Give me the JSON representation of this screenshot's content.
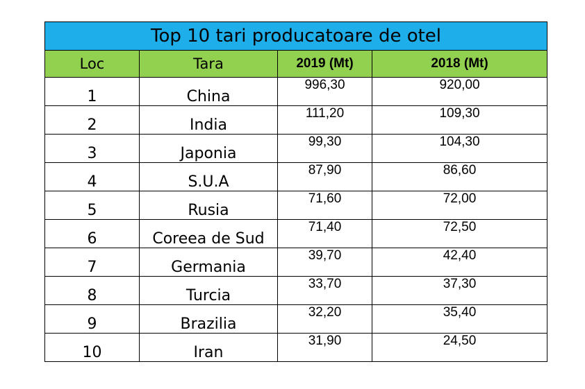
{
  "chart_data": {
    "type": "table",
    "title": "Top 10 tari producatoare de otel",
    "columns": [
      "Loc",
      "Tara",
      "2019 (Mt)",
      "2018 (Mt)"
    ],
    "rows": [
      {
        "rank": "1",
        "country": "China",
        "y2019": "996,30",
        "y2018": "920,00"
      },
      {
        "rank": "2",
        "country": "India",
        "y2019": "111,20",
        "y2018": "109,30"
      },
      {
        "rank": "3",
        "country": "Japonia",
        "y2019": "99,30",
        "y2018": "104,30"
      },
      {
        "rank": "4",
        "country": "S.U.A",
        "y2019": "87,90",
        "y2018": "86,60"
      },
      {
        "rank": "5",
        "country": "Rusia",
        "y2019": "71,60",
        "y2018": "72,00"
      },
      {
        "rank": "6",
        "country": "Coreea de Sud",
        "y2019": "71,40",
        "y2018": "72,50"
      },
      {
        "rank": "7",
        "country": "Germania",
        "y2019": "39,70",
        "y2018": "42,40"
      },
      {
        "rank": "8",
        "country": "Turcia",
        "y2019": "33,70",
        "y2018": "37,30"
      },
      {
        "rank": "9",
        "country": "Brazilia",
        "y2019": "32,20",
        "y2018": "35,40"
      },
      {
        "rank": "10",
        "country": "Iran",
        "y2019": "31,90",
        "y2018": "24,50"
      }
    ]
  },
  "colors": {
    "title_background": "#1eaeea",
    "header_background": "#92d050",
    "border": "#000000"
  }
}
